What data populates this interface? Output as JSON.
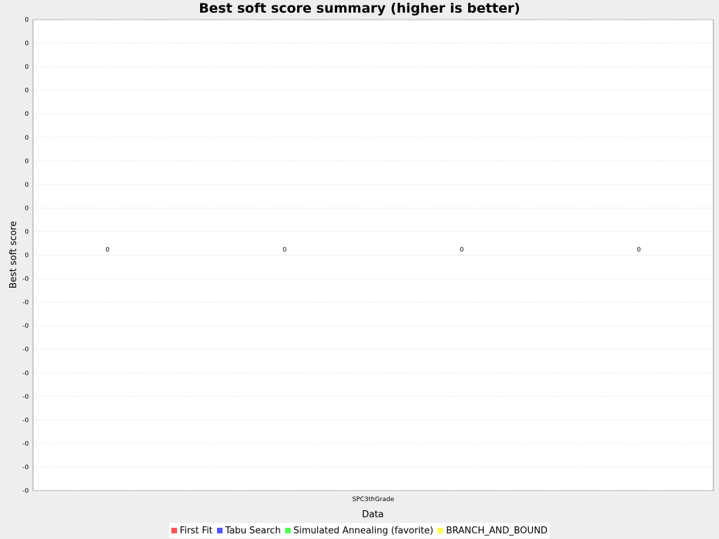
{
  "chart_data": {
    "type": "bar",
    "title": "Best soft score summary (higher is better)",
    "xlabel": "Data",
    "ylabel": "Best soft score",
    "categories": [
      "SPC3thGrade"
    ],
    "series": [
      {
        "name": "First Fit",
        "color": "#ff5555",
        "values": [
          0
        ],
        "label": "0"
      },
      {
        "name": "Tabu Search",
        "color": "#5555ff",
        "values": [
          0
        ],
        "label": "0"
      },
      {
        "name": "Simulated Annealing (favorite)",
        "color": "#55ff55",
        "values": [
          0
        ],
        "label": "0"
      },
      {
        "name": "BRANCH_AND_BOUND",
        "color": "#ffff55",
        "values": [
          0
        ],
        "label": "0"
      }
    ],
    "yticks": [
      "0",
      "0",
      "0",
      "0",
      "0",
      "0",
      "0",
      "0",
      "0",
      "0",
      "0",
      "-0",
      "-0",
      "-0",
      "-0",
      "-0",
      "-0",
      "-0",
      "-0",
      "-0",
      "-0"
    ],
    "grid": true,
    "legend_position": "bottom"
  }
}
